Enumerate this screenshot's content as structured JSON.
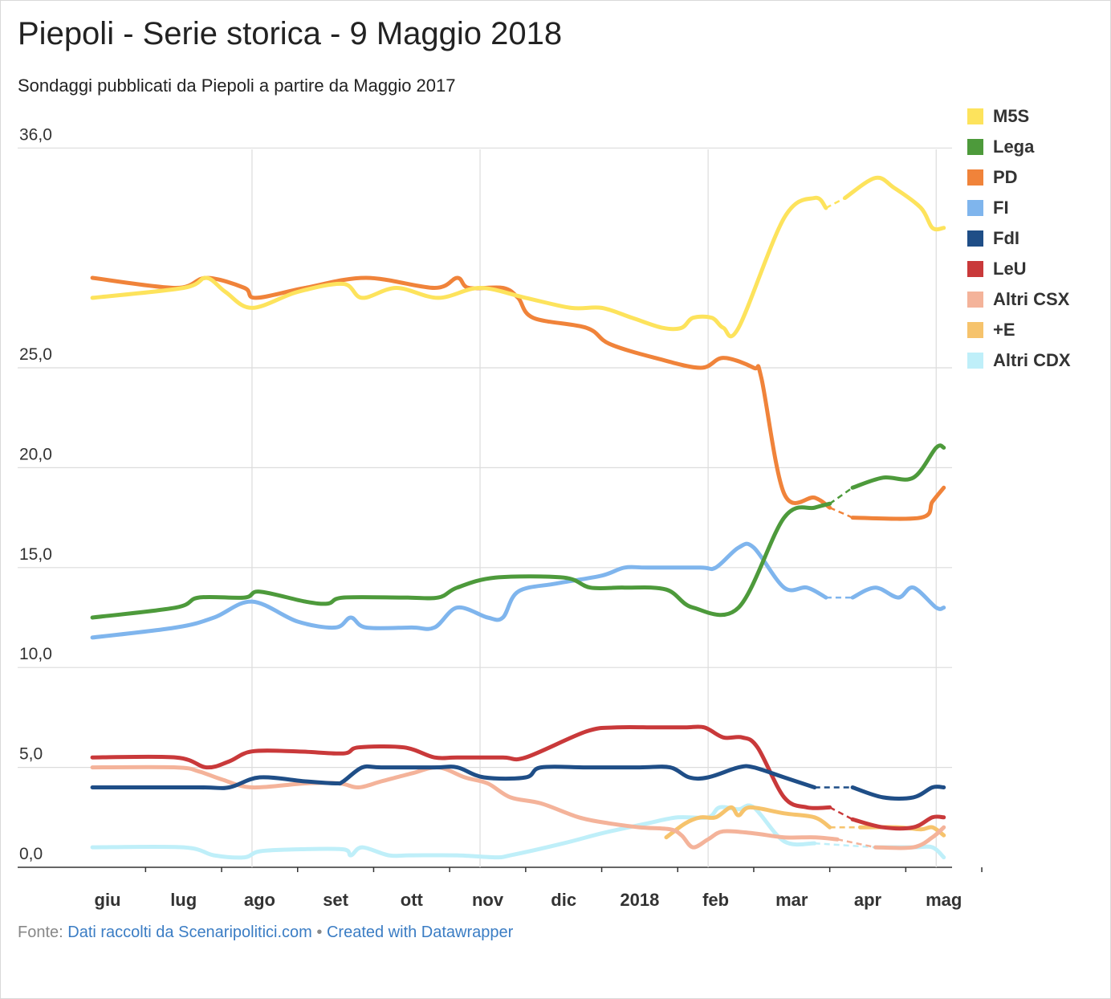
{
  "header": {
    "title": "Piepoli - Serie storica - 9 Maggio 2018",
    "subtitle": "Sondaggi pubblicati da Piepoli a partire da Maggio 2017"
  },
  "footer": {
    "source_prefix": "Fonte:",
    "source_link": "Dati raccolti da Scenaripolitici.com",
    "separator": "•",
    "credit_link": "Created with Datawrapper"
  },
  "chart_data": {
    "type": "line",
    "title": "Piepoli - Serie storica - 9 Maggio 2018",
    "subtitle": "Sondaggi pubblicati da Piepoli a partire da Maggio 2017",
    "ylim": [
      0,
      36
    ],
    "y_ticks": [
      0,
      5,
      10,
      15,
      20,
      25,
      36
    ],
    "y_tick_labels": [
      "0,0",
      "5,0",
      "10,0",
      "15,0",
      "20,0",
      "25,0",
      "36,0"
    ],
    "x_tick_labels": [
      "giu",
      "lug",
      "ago",
      "set",
      "ott",
      "nov",
      "dic",
      "2018",
      "feb",
      "mar",
      "apr",
      "mag"
    ],
    "x_tick_months": [
      1,
      2,
      3,
      4,
      5,
      6,
      7,
      8,
      9,
      10,
      11,
      12
    ],
    "x_range_months": [
      -0.2,
      12.17
    ],
    "grid": true,
    "legend_position": "right",
    "gap": {
      "from": 9.6,
      "to": 10.2,
      "style": "dashed"
    },
    "series": [
      {
        "name": "M5S",
        "color": "#fde35c",
        "points": [
          [
            -0.2,
            28.5
          ],
          [
            1.0,
            29.0
          ],
          [
            1.3,
            29.5
          ],
          [
            1.55,
            28.8
          ],
          [
            1.9,
            28.0
          ],
          [
            2.5,
            28.8
          ],
          [
            3.1,
            29.2
          ],
          [
            3.35,
            28.5
          ],
          [
            3.8,
            29.0
          ],
          [
            4.35,
            28.5
          ],
          [
            4.9,
            29.0
          ],
          [
            5.5,
            28.5
          ],
          [
            6.1,
            28.0
          ],
          [
            6.5,
            28.0
          ],
          [
            6.9,
            27.5
          ],
          [
            7.3,
            27.0
          ],
          [
            7.55,
            27.0
          ],
          [
            7.7,
            27.5
          ],
          [
            7.95,
            27.5
          ],
          [
            8.1,
            27.0
          ],
          [
            8.3,
            27.0
          ],
          [
            8.9,
            32.5
          ],
          [
            9.3,
            33.5
          ],
          [
            9.45,
            33.0
          ],
          [
            9.7,
            33.5
          ],
          [
            10.1,
            34.5
          ],
          [
            10.35,
            34.0
          ],
          [
            10.7,
            33.0
          ],
          [
            10.85,
            32.0
          ],
          [
            11.0,
            32.0
          ]
        ]
      },
      {
        "name": "Lega",
        "color": "#4d9a3b",
        "points": [
          [
            -0.2,
            12.5
          ],
          [
            0.9,
            13.0
          ],
          [
            1.2,
            13.5
          ],
          [
            1.8,
            13.5
          ],
          [
            2.0,
            13.8
          ],
          [
            2.6,
            13.3
          ],
          [
            2.9,
            13.2
          ],
          [
            3.1,
            13.5
          ],
          [
            3.9,
            13.5
          ],
          [
            4.35,
            13.5
          ],
          [
            4.6,
            14.0
          ],
          [
            5.1,
            14.5
          ],
          [
            6.0,
            14.5
          ],
          [
            6.35,
            14.0
          ],
          [
            6.8,
            14.0
          ],
          [
            7.35,
            13.9
          ],
          [
            7.7,
            13.0
          ],
          [
            8.3,
            13.0
          ],
          [
            8.9,
            17.5
          ],
          [
            9.3,
            18.0
          ],
          [
            9.5,
            18.2
          ],
          [
            9.8,
            19.0
          ],
          [
            10.2,
            19.5
          ],
          [
            10.6,
            19.5
          ],
          [
            10.9,
            21.0
          ],
          [
            11.0,
            21.0
          ]
        ]
      },
      {
        "name": "PD",
        "color": "#f0833a",
        "points": [
          [
            -0.2,
            29.5
          ],
          [
            0.9,
            29.0
          ],
          [
            1.3,
            29.5
          ],
          [
            1.8,
            29.0
          ],
          [
            1.95,
            28.5
          ],
          [
            2.6,
            29.0
          ],
          [
            3.4,
            29.5
          ],
          [
            4.3,
            29.0
          ],
          [
            4.6,
            29.5
          ],
          [
            4.75,
            29.0
          ],
          [
            5.2,
            29.0
          ],
          [
            5.4,
            28.5
          ],
          [
            5.6,
            27.5
          ],
          [
            6.3,
            27.0
          ],
          [
            6.6,
            26.2
          ],
          [
            7.2,
            25.5
          ],
          [
            7.8,
            25.0
          ],
          [
            8.1,
            25.5
          ],
          [
            8.5,
            25.0
          ],
          [
            8.6,
            24.5
          ],
          [
            8.9,
            18.7
          ],
          [
            9.3,
            18.5
          ],
          [
            9.5,
            18.0
          ],
          [
            9.8,
            17.5
          ],
          [
            10.7,
            17.5
          ],
          [
            10.85,
            18.3
          ],
          [
            11.0,
            19.0
          ]
        ]
      },
      {
        "name": "FI",
        "color": "#7fb5ed",
        "points": [
          [
            -0.2,
            11.5
          ],
          [
            0.9,
            12.0
          ],
          [
            1.4,
            12.5
          ],
          [
            1.9,
            13.3
          ],
          [
            2.5,
            12.3
          ],
          [
            3.0,
            12.0
          ],
          [
            3.2,
            12.5
          ],
          [
            3.4,
            12.0
          ],
          [
            4.0,
            12.0
          ],
          [
            4.3,
            12.0
          ],
          [
            4.6,
            13.0
          ],
          [
            5.0,
            12.5
          ],
          [
            5.2,
            12.5
          ],
          [
            5.4,
            13.8
          ],
          [
            5.9,
            14.2
          ],
          [
            6.5,
            14.6
          ],
          [
            6.8,
            15.0
          ],
          [
            7.1,
            15.0
          ],
          [
            7.8,
            15.0
          ],
          [
            8.0,
            15.0
          ],
          [
            8.3,
            16.0
          ],
          [
            8.5,
            16.0
          ],
          [
            8.9,
            14.0
          ],
          [
            9.2,
            14.0
          ],
          [
            9.45,
            13.5
          ],
          [
            9.8,
            13.5
          ],
          [
            10.1,
            14.0
          ],
          [
            10.4,
            13.5
          ],
          [
            10.6,
            14.0
          ],
          [
            10.9,
            13.0
          ],
          [
            11.0,
            13.0
          ]
        ]
      },
      {
        "name": "FdI",
        "color": "#1f4e87",
        "points": [
          [
            -0.2,
            4.0
          ],
          [
            1.2,
            4.0
          ],
          [
            1.6,
            4.0
          ],
          [
            2.0,
            4.5
          ],
          [
            2.6,
            4.3
          ],
          [
            3.0,
            4.2
          ],
          [
            3.1,
            4.3
          ],
          [
            3.35,
            5.0
          ],
          [
            3.6,
            5.0
          ],
          [
            4.3,
            5.0
          ],
          [
            4.6,
            5.0
          ],
          [
            4.95,
            4.5
          ],
          [
            5.5,
            4.5
          ],
          [
            5.7,
            5.0
          ],
          [
            6.3,
            5.0
          ],
          [
            7.0,
            5.0
          ],
          [
            7.4,
            5.0
          ],
          [
            7.65,
            4.5
          ],
          [
            7.9,
            4.5
          ],
          [
            8.3,
            5.0
          ],
          [
            8.5,
            5.0
          ],
          [
            8.9,
            4.5
          ],
          [
            9.3,
            4.0
          ],
          [
            9.8,
            4.0
          ],
          [
            10.2,
            3.5
          ],
          [
            10.6,
            3.5
          ],
          [
            10.85,
            4.0
          ],
          [
            11.0,
            4.0
          ]
        ]
      },
      {
        "name": "LeU",
        "color": "#c9393a",
        "points": [
          [
            -0.2,
            5.5
          ],
          [
            0.9,
            5.5
          ],
          [
            1.3,
            5.0
          ],
          [
            1.6,
            5.3
          ],
          [
            1.9,
            5.8
          ],
          [
            2.5,
            5.8
          ],
          [
            3.1,
            5.7
          ],
          [
            3.3,
            6.0
          ],
          [
            3.9,
            6.0
          ],
          [
            4.3,
            5.5
          ],
          [
            4.6,
            5.5
          ],
          [
            5.2,
            5.5
          ],
          [
            5.5,
            5.5
          ],
          [
            6.3,
            6.8
          ],
          [
            6.7,
            7.0
          ],
          [
            7.2,
            7.0
          ],
          [
            7.6,
            7.0
          ],
          [
            7.85,
            7.0
          ],
          [
            8.1,
            6.5
          ],
          [
            8.35,
            6.5
          ],
          [
            8.55,
            6.0
          ],
          [
            8.9,
            3.5
          ],
          [
            9.2,
            3.0
          ],
          [
            9.5,
            3.0
          ],
          [
            9.8,
            2.4
          ],
          [
            10.2,
            2.0
          ],
          [
            10.6,
            2.0
          ],
          [
            10.85,
            2.5
          ],
          [
            11.0,
            2.5
          ]
        ]
      },
      {
        "name": "Altri CSX",
        "color": "#f4b39a",
        "points": [
          [
            -0.2,
            5.0
          ],
          [
            0.9,
            5.0
          ],
          [
            1.2,
            4.8
          ],
          [
            1.5,
            4.4
          ],
          [
            1.9,
            4.0
          ],
          [
            2.6,
            4.2
          ],
          [
            3.05,
            4.2
          ],
          [
            3.3,
            4.0
          ],
          [
            3.6,
            4.3
          ],
          [
            4.0,
            4.7
          ],
          [
            4.35,
            5.0
          ],
          [
            4.7,
            4.5
          ],
          [
            5.0,
            4.2
          ],
          [
            5.3,
            3.5
          ],
          [
            5.7,
            3.2
          ],
          [
            6.2,
            2.5
          ],
          [
            6.6,
            2.2
          ],
          [
            7.0,
            2.0
          ],
          [
            7.4,
            1.9
          ],
          [
            7.55,
            1.6
          ],
          [
            7.7,
            1.0
          ],
          [
            7.9,
            1.4
          ],
          [
            8.1,
            1.8
          ],
          [
            8.5,
            1.7
          ],
          [
            8.9,
            1.5
          ],
          [
            9.3,
            1.5
          ],
          [
            9.6,
            1.4
          ],
          [
            10.1,
            1.0
          ],
          [
            10.6,
            1.0
          ],
          [
            10.85,
            1.5
          ],
          [
            11.0,
            2.0
          ]
        ]
      },
      {
        "name": "+E",
        "color": "#f6c36c",
        "points": [
          [
            7.35,
            1.5
          ],
          [
            7.6,
            2.2
          ],
          [
            7.8,
            2.5
          ],
          [
            8.0,
            2.5
          ],
          [
            8.2,
            3.0
          ],
          [
            8.3,
            2.6
          ],
          [
            8.45,
            3.0
          ],
          [
            8.9,
            2.7
          ],
          [
            9.3,
            2.5
          ],
          [
            9.5,
            2.0
          ],
          [
            9.9,
            2.0
          ],
          [
            10.4,
            2.0
          ],
          [
            10.7,
            1.9
          ],
          [
            10.85,
            2.0
          ],
          [
            11.0,
            1.6
          ]
        ]
      },
      {
        "name": "Altri CDX",
        "color": "#bfeff9",
        "points": [
          [
            -0.2,
            1.0
          ],
          [
            1.0,
            1.0
          ],
          [
            1.4,
            0.6
          ],
          [
            1.8,
            0.5
          ],
          [
            2.0,
            0.8
          ],
          [
            2.5,
            0.9
          ],
          [
            3.1,
            0.9
          ],
          [
            3.2,
            0.6
          ],
          [
            3.35,
            1.0
          ],
          [
            3.7,
            0.6
          ],
          [
            4.0,
            0.6
          ],
          [
            4.6,
            0.6
          ],
          [
            5.1,
            0.5
          ],
          [
            5.3,
            0.6
          ],
          [
            6.0,
            1.2
          ],
          [
            6.5,
            1.7
          ],
          [
            7.1,
            2.2
          ],
          [
            7.5,
            2.5
          ],
          [
            7.9,
            2.5
          ],
          [
            8.05,
            3.0
          ],
          [
            8.3,
            2.9
          ],
          [
            8.5,
            3.0
          ],
          [
            8.9,
            1.3
          ],
          [
            9.3,
            1.2
          ],
          [
            10.1,
            1.0
          ],
          [
            10.6,
            1.0
          ],
          [
            10.85,
            1.0
          ],
          [
            11.0,
            0.5
          ]
        ]
      }
    ]
  }
}
